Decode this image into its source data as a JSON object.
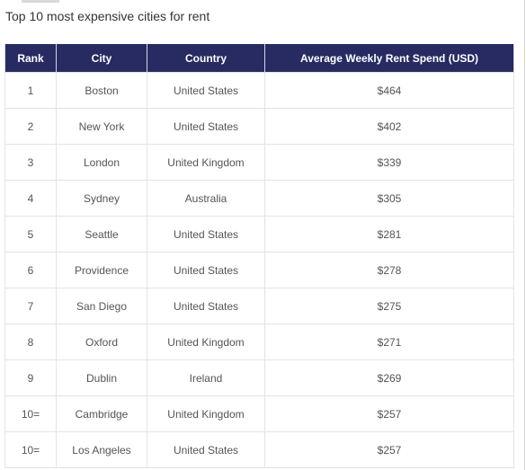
{
  "page": {
    "title": "Top 10 most expensive cities for rent"
  },
  "table": {
    "headers": [
      "Rank",
      "City",
      "Country",
      "Average Weekly Rent Spend (USD)"
    ],
    "rows": [
      {
        "rank": "1",
        "city": "Boston",
        "country": "United States",
        "rent": "$464"
      },
      {
        "rank": "2",
        "city": "New York",
        "country": "United States",
        "rent": "$402"
      },
      {
        "rank": "3",
        "city": "London",
        "country": "United Kingdom",
        "rent": "$339"
      },
      {
        "rank": "4",
        "city": "Sydney",
        "country": "Australia",
        "rent": "$305"
      },
      {
        "rank": "5",
        "city": "Seattle",
        "country": "United States",
        "rent": "$281"
      },
      {
        "rank": "6",
        "city": "Providence",
        "country": "United States",
        "rent": "$278"
      },
      {
        "rank": "7",
        "city": "San Diego",
        "country": "United States",
        "rent": "$275"
      },
      {
        "rank": "8",
        "city": "Oxford",
        "country": "United Kingdom",
        "rent": "$271"
      },
      {
        "rank": "9",
        "city": "Dublin",
        "country": "Ireland",
        "rent": "$269"
      },
      {
        "rank": "10=",
        "city": "Cambridge",
        "country": "United Kingdom",
        "rent": "$257"
      },
      {
        "rank": "10=",
        "city": "Los Angeles",
        "country": "United States",
        "rent": "$257"
      }
    ]
  },
  "colors": {
    "header_background": "#272b62",
    "header_text": "#ffffff",
    "cell_text": "#555555",
    "cell_border": "#e3e3e3"
  }
}
